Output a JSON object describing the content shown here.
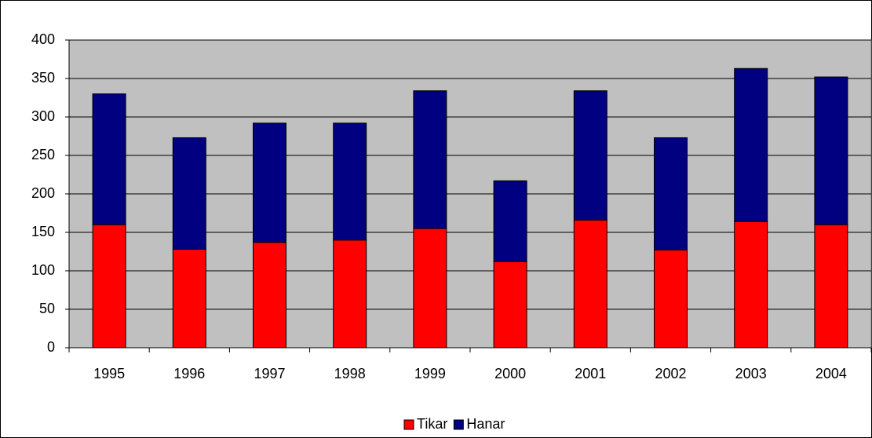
{
  "chart_data": {
    "type": "stacked_bar",
    "categories": [
      "1995",
      "1996",
      "1997",
      "1998",
      "1999",
      "2000",
      "2001",
      "2002",
      "2003",
      "2004"
    ],
    "series": [
      {
        "name": "Tikar",
        "color": "#ff0000",
        "values": [
          160,
          128,
          137,
          140,
          155,
          112,
          166,
          127,
          164,
          160
        ]
      },
      {
        "name": "Hanar",
        "color": "#000080",
        "values": [
          170,
          145,
          155,
          152,
          179,
          105,
          168,
          146,
          199,
          192
        ]
      }
    ],
    "ylim": [
      0,
      400
    ],
    "yticks": [
      0,
      50,
      100,
      150,
      200,
      250,
      300,
      350,
      400
    ],
    "grid": true,
    "plot_background": "#c0c0c0",
    "legend": "bottom"
  }
}
